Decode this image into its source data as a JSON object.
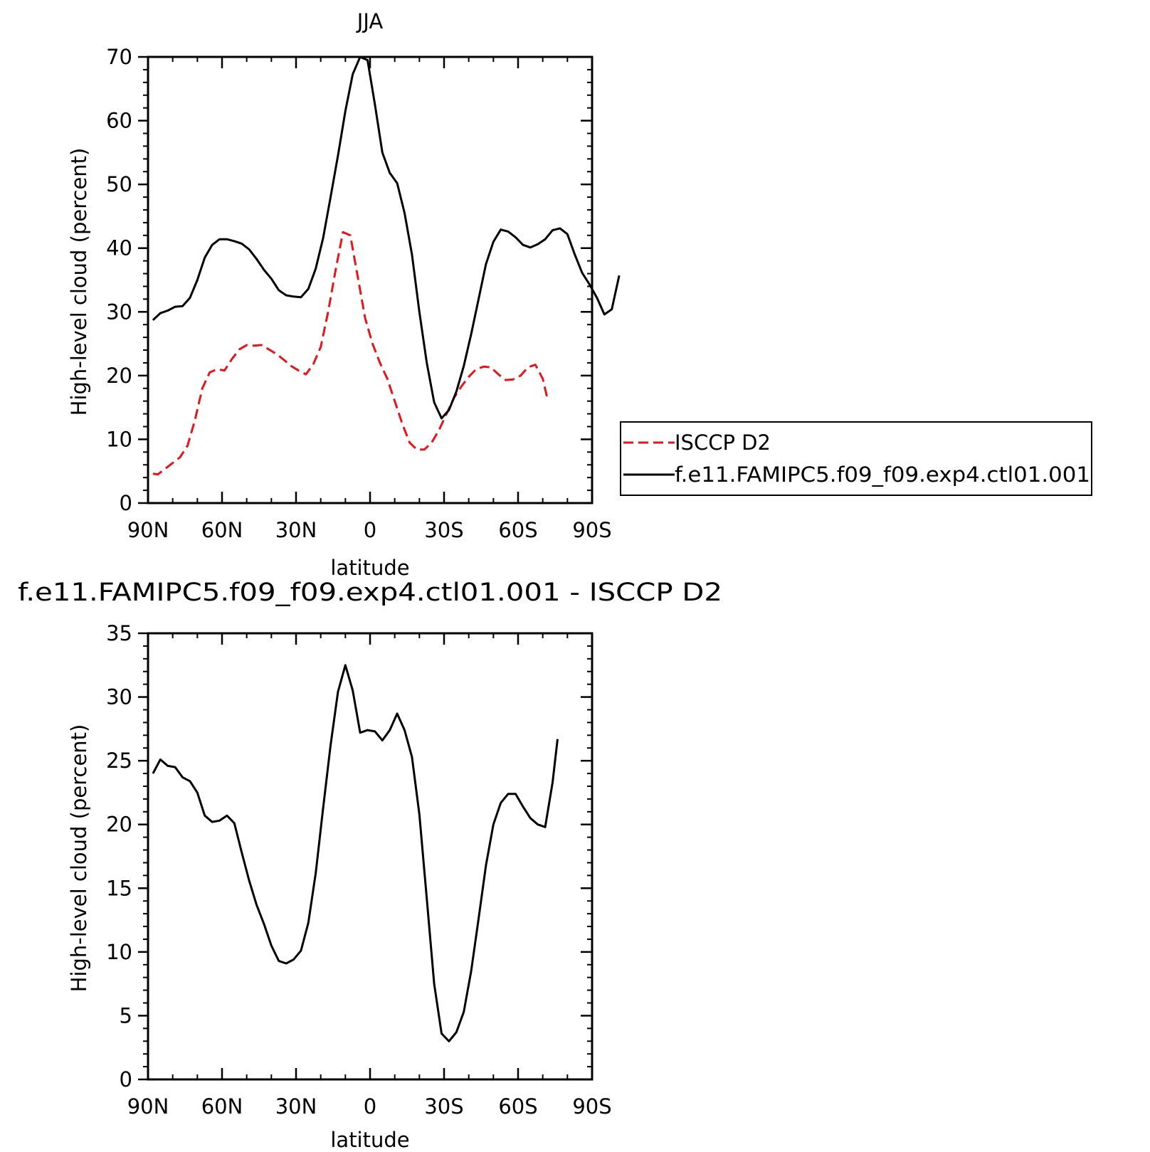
{
  "chart_data": [
    {
      "type": "line",
      "title": "JJA",
      "xlabel": "latitude",
      "ylabel": "High-level cloud (percent)",
      "xlim": [
        90,
        -90
      ],
      "ylim": [
        0,
        70
      ],
      "xticks": [
        {
          "value": 90,
          "label": "90N"
        },
        {
          "value": 60,
          "label": "60N"
        },
        {
          "value": 30,
          "label": "30N"
        },
        {
          "value": 0,
          "label": "0"
        },
        {
          "value": -30,
          "label": "30S"
        },
        {
          "value": -60,
          "label": "60S"
        },
        {
          "value": -90,
          "label": "90S"
        }
      ],
      "yticks": [
        0,
        10,
        20,
        30,
        40,
        50,
        60,
        70
      ],
      "legend": {
        "entries": [
          "ISCCP D2",
          "f.e11.FAMIPC5.f09_f09.exp4.ctl01.001"
        ]
      },
      "series": [
        {
          "name": "ISCCP D2",
          "color": "#e8141a",
          "dash": "dashed",
          "points": [
            [
              88,
              4.6
            ],
            [
              86,
              4.5
            ],
            [
              83,
              5.4
            ],
            [
              80,
              6.3
            ],
            [
              77,
              7.2
            ],
            [
              74,
              9.0
            ],
            [
              71,
              13.0
            ],
            [
              68,
              18.0
            ],
            [
              65,
              20.5
            ],
            [
              62,
              21.0
            ],
            [
              59,
              20.8
            ],
            [
              56,
              22.6
            ],
            [
              53,
              24.1
            ],
            [
              50,
              24.8
            ],
            [
              47,
              24.7
            ],
            [
              44,
              24.8
            ],
            [
              41,
              24.1
            ],
            [
              38,
              23.4
            ],
            [
              35,
              22.5
            ],
            [
              32,
              21.5
            ],
            [
              29,
              20.8
            ],
            [
              26,
              20.2
            ],
            [
              23,
              21.8
            ],
            [
              20,
              24.5
            ],
            [
              17,
              30.0
            ],
            [
              14,
              36.5
            ],
            [
              11,
              42.5
            ],
            [
              8,
              42.0
            ],
            [
              5,
              35.5
            ],
            [
              2,
              29.0
            ],
            [
              -1,
              25.0
            ],
            [
              -4,
              22.0
            ],
            [
              -7,
              19.5
            ],
            [
              -10,
              16.0
            ],
            [
              -13,
              12.5
            ],
            [
              -16,
              9.5
            ],
            [
              -19,
              8.4
            ],
            [
              -22,
              8.4
            ],
            [
              -25,
              9.5
            ],
            [
              -28,
              11.5
            ],
            [
              -31,
              14.0
            ],
            [
              -34,
              16.5
            ],
            [
              -37,
              18.3
            ],
            [
              -40,
              19.8
            ],
            [
              -43,
              21.0
            ],
            [
              -46,
              21.4
            ],
            [
              -49,
              21.3
            ],
            [
              -52,
              20.2
            ],
            [
              -55,
              19.3
            ],
            [
              -58,
              19.4
            ],
            [
              -61,
              20.0
            ],
            [
              -64,
              21.3
            ],
            [
              -67,
              21.7
            ],
            [
              -70,
              19.5
            ],
            [
              -72,
              16.2
            ]
          ]
        },
        {
          "name": "f.e11.FAMIPC5.f09_f09.exp4.ctl01.001",
          "color": "#000000",
          "dash": "solid",
          "points": [
            [
              88,
              28.7
            ],
            [
              85,
              29.8
            ],
            [
              82,
              30.2
            ],
            [
              79,
              30.8
            ],
            [
              76,
              30.9
            ],
            [
              73,
              32.2
            ],
            [
              70,
              35.0
            ],
            [
              67,
              38.5
            ],
            [
              64,
              40.5
            ],
            [
              61,
              41.4
            ],
            [
              58,
              41.4
            ],
            [
              55,
              41.1
            ],
            [
              52,
              40.7
            ],
            [
              49,
              39.8
            ],
            [
              46,
              38.3
            ],
            [
              43,
              36.6
            ],
            [
              40,
              35.2
            ],
            [
              37,
              33.4
            ],
            [
              34,
              32.6
            ],
            [
              31,
              32.4
            ],
            [
              28,
              32.3
            ],
            [
              25,
              33.6
            ],
            [
              22,
              36.8
            ],
            [
              19,
              41.6
            ],
            [
              16,
              48.0
            ],
            [
              13,
              54.5
            ],
            [
              10,
              61.5
            ],
            [
              7,
              67.3
            ],
            [
              4,
              70.0
            ],
            [
              1,
              69.5
            ],
            [
              -2,
              62.5
            ],
            [
              -5,
              55.0
            ],
            [
              -8,
              51.8
            ],
            [
              -11,
              50.2
            ],
            [
              -14,
              45.5
            ],
            [
              -17,
              39.0
            ],
            [
              -20,
              30.0
            ],
            [
              -23,
              22.0
            ],
            [
              -26,
              15.8
            ],
            [
              -29,
              13.3
            ],
            [
              -32,
              14.6
            ],
            [
              -35,
              17.5
            ],
            [
              -38,
              21.5
            ],
            [
              -41,
              26.5
            ],
            [
              -44,
              32.0
            ],
            [
              -47,
              37.5
            ],
            [
              -50,
              41.0
            ],
            [
              -53,
              42.9
            ],
            [
              -56,
              42.6
            ],
            [
              -59,
              41.7
            ],
            [
              -62,
              40.5
            ],
            [
              -65,
              40.1
            ],
            [
              -68,
              40.6
            ],
            [
              -71,
              41.4
            ],
            [
              -74,
              42.8
            ],
            [
              -77,
              43.1
            ],
            [
              -80,
              42.2
            ],
            [
              -83,
              39.0
            ],
            [
              -86,
              36.1
            ],
            [
              -89,
              34.3
            ],
            [
              -92,
              32.2
            ],
            [
              -95,
              29.6
            ],
            [
              -98,
              30.4
            ],
            [
              -101,
              35.7
            ]
          ]
        }
      ]
    },
    {
      "type": "line",
      "title": "f.e11.FAMIPC5.f09_f09.exp4.ctl01.001 - ISCCP D2",
      "xlabel": "latitude",
      "ylabel": "High-level cloud (percent)",
      "xlim": [
        90,
        -90
      ],
      "ylim": [
        0,
        35
      ],
      "xticks": [
        {
          "value": 90,
          "label": "90N"
        },
        {
          "value": 60,
          "label": "60N"
        },
        {
          "value": 30,
          "label": "30N"
        },
        {
          "value": 0,
          "label": "0"
        },
        {
          "value": -30,
          "label": "30S"
        },
        {
          "value": -60,
          "label": "60S"
        },
        {
          "value": -90,
          "label": "90S"
        }
      ],
      "yticks": [
        0,
        5,
        10,
        15,
        20,
        25,
        30,
        35
      ],
      "series": [
        {
          "color": "#000000",
          "dash": "solid",
          "points": [
            [
              88,
              24.0
            ],
            [
              85,
              25.1
            ],
            [
              82,
              24.6
            ],
            [
              79,
              24.5
            ],
            [
              76,
              23.7
            ],
            [
              73,
              23.4
            ],
            [
              70,
              22.5
            ],
            [
              67,
              20.7
            ],
            [
              64,
              20.2
            ],
            [
              61,
              20.3
            ],
            [
              58,
              20.7
            ],
            [
              55,
              20.1
            ],
            [
              52,
              17.8
            ],
            [
              49,
              15.6
            ],
            [
              46,
              13.7
            ],
            [
              43,
              12.2
            ],
            [
              40,
              10.5
            ],
            [
              37,
              9.3
            ],
            [
              34,
              9.1
            ],
            [
              31,
              9.4
            ],
            [
              28,
              10.1
            ],
            [
              25,
              12.3
            ],
            [
              22,
              16.2
            ],
            [
              19,
              21.3
            ],
            [
              16,
              26.2
            ],
            [
              13,
              30.4
            ],
            [
              10,
              32.5
            ],
            [
              7,
              30.5
            ],
            [
              4,
              27.2
            ],
            [
              1,
              27.4
            ],
            [
              -2,
              27.3
            ],
            [
              -5,
              26.6
            ],
            [
              -8,
              27.4
            ],
            [
              -11,
              28.7
            ],
            [
              -14,
              27.4
            ],
            [
              -17,
              25.3
            ],
            [
              -20,
              20.8
            ],
            [
              -23,
              14.2
            ],
            [
              -26,
              7.5
            ],
            [
              -29,
              3.6
            ],
            [
              -32,
              3.0
            ],
            [
              -35,
              3.7
            ],
            [
              -38,
              5.3
            ],
            [
              -41,
              8.5
            ],
            [
              -44,
              12.6
            ],
            [
              -47,
              16.8
            ],
            [
              -50,
              20.0
            ],
            [
              -53,
              21.7
            ],
            [
              -56,
              22.4
            ],
            [
              -59,
              22.4
            ],
            [
              -62,
              21.4
            ],
            [
              -65,
              20.5
            ],
            [
              -68,
              20.0
            ],
            [
              -71,
              19.8
            ],
            [
              -74,
              23.3
            ],
            [
              -76,
              26.7
            ]
          ]
        }
      ]
    }
  ]
}
